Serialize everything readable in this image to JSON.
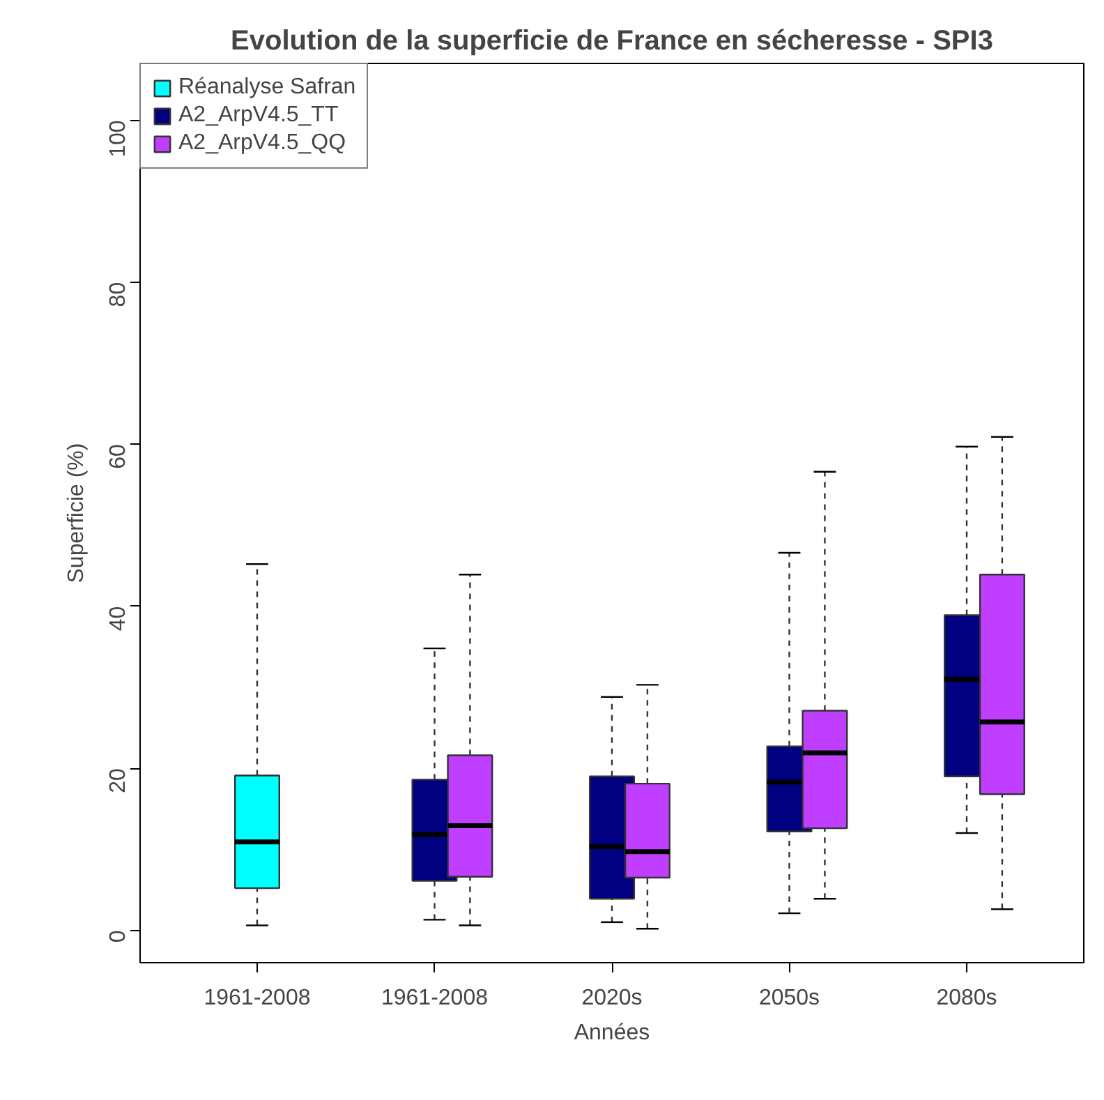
{
  "chart_data": {
    "type": "box",
    "title": "Evolution de la superficie de France en sécheresse - SPI3",
    "xlabel": "Années",
    "ylabel": "Superficie (%)",
    "categories": [
      "1961-2008",
      "1961-2008",
      "2020s",
      "2050s",
      "2080s"
    ],
    "ylim": [
      -4,
      107
    ],
    "yticks": [
      0,
      20,
      40,
      60,
      80,
      100
    ],
    "grid": false,
    "legend": "top left",
    "series": [
      {
        "name": "Réanalyse Safran",
        "color": "#00ffff",
        "boxes": [
          {
            "low": 0.6,
            "q1": 5.2,
            "median": 10.9,
            "q3": 19.1,
            "high": 45.2
          },
          null,
          null,
          null,
          null
        ]
      },
      {
        "name": "A2_ArpV4.5_TT",
        "color": "#000080",
        "boxes": [
          null,
          {
            "low": 1.3,
            "q1": 6.1,
            "median": 11.8,
            "q3": 18.6,
            "high": 34.8
          },
          {
            "low": 1.0,
            "q1": 3.9,
            "median": 10.3,
            "q3": 19.0,
            "high": 28.8
          },
          {
            "low": 2.1,
            "q1": 12.2,
            "median": 18.3,
            "q3": 22.7,
            "high": 46.6
          },
          {
            "low": 12.0,
            "q1": 19.0,
            "median": 31.0,
            "q3": 38.9,
            "high": 59.7
          }
        ]
      },
      {
        "name": "A2_ArpV4.5_QQ",
        "color": "#bf3eff",
        "boxes": [
          null,
          {
            "low": 0.6,
            "q1": 6.6,
            "median": 12.9,
            "q3": 21.6,
            "high": 43.9
          },
          {
            "low": 0.2,
            "q1": 6.5,
            "median": 9.7,
            "q3": 18.1,
            "high": 30.3
          },
          {
            "low": 3.9,
            "q1": 12.6,
            "median": 21.9,
            "q3": 27.1,
            "high": 56.6
          },
          {
            "low": 2.6,
            "q1": 16.8,
            "median": 25.7,
            "q3": 43.9,
            "high": 60.9
          }
        ]
      }
    ]
  }
}
